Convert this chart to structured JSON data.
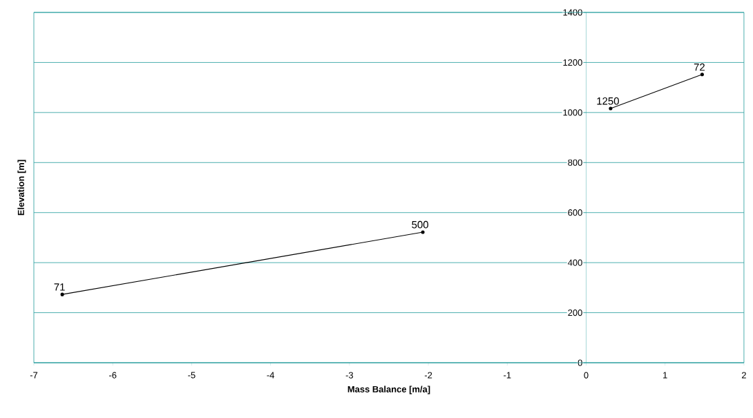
{
  "chart_data": {
    "type": "line",
    "xlabel": "Mass Balance [m/a]",
    "ylabel": "Elevation [m]",
    "series": [
      {
        "x": [
          -6.64,
          -2.07
        ],
        "values": [
          273,
          522
        ],
        "color": "#000000"
      },
      {
        "x": [
          0.31,
          1.47
        ],
        "values": [
          1016,
          1152
        ],
        "color": "#000000"
      }
    ],
    "annotations": [
      {
        "text": "71",
        "x": -6.64,
        "y": 273
      },
      {
        "text": "500",
        "x": -2.07,
        "y": 522
      },
      {
        "text": "1250",
        "x": 0.31,
        "y": 1016
      },
      {
        "text": "72",
        "x": 1.47,
        "y": 1152
      }
    ],
    "xlim": [
      -7,
      2
    ],
    "ylim": [
      0,
      1400
    ],
    "xticks": [
      -7,
      -6,
      -5,
      -4,
      -3,
      -2,
      -1,
      0,
      1,
      2
    ],
    "yticks": [
      0,
      200,
      400,
      600,
      800,
      1000,
      1200,
      1400
    ],
    "grid": "y",
    "marker": "circle",
    "line_style": "solid",
    "legend": false
  }
}
